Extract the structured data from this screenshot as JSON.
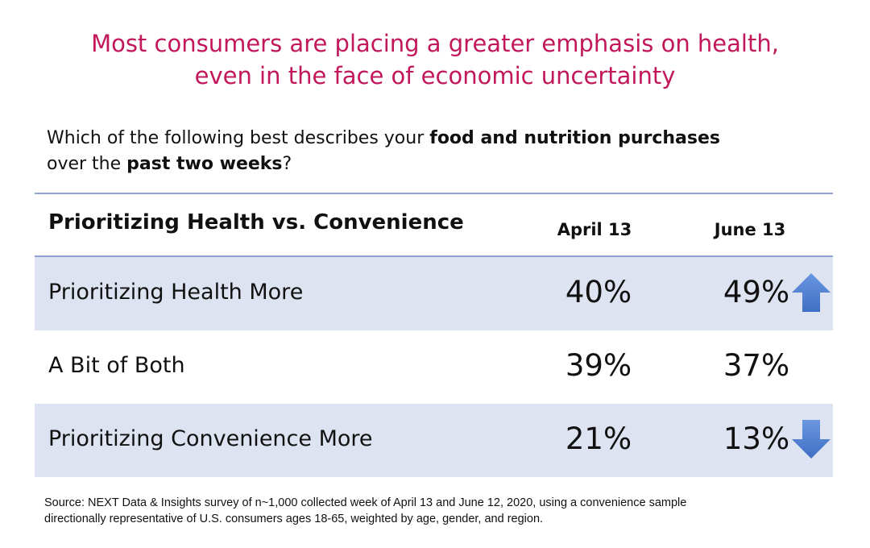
{
  "headline": {
    "line1": "Most consumers are placing a greater emphasis on health,",
    "line2": "even in the face of economic uncertainty"
  },
  "question": {
    "part1": "Which of the following best describes your ",
    "bold1": "food and nutrition purchases",
    "part2": " over the ",
    "bold2": "past two weeks",
    "part3": "?"
  },
  "colors": {
    "headline": "#c2185b",
    "row_shade": "#dde3f0",
    "rule": "#8ea3d1",
    "arrow": "#4a7bd0"
  },
  "chart_data": {
    "type": "table",
    "title": "Prioritizing Health vs. Convenience",
    "columns": [
      "April 13",
      "June 13"
    ],
    "rows": [
      {
        "label": "Prioritizing Health More",
        "values": [
          "40%",
          "49%"
        ],
        "trend": "up",
        "trend_icon": "arrow-up-icon"
      },
      {
        "label": "A Bit of Both",
        "values": [
          "39%",
          "37%"
        ],
        "trend": "",
        "trend_icon": ""
      },
      {
        "label": "Prioritizing Convenience More",
        "values": [
          "21%",
          "13%"
        ],
        "trend": "down",
        "trend_icon": "arrow-down-icon"
      }
    ]
  },
  "source": {
    "line1": "Source: NEXT Data & Insights survey of n~1,000 collected week of April 13 and June 12, 2020, using a convenience sample",
    "line2": "directionally representative of U.S. consumers ages 18-65, weighted by age, gender, and region."
  }
}
